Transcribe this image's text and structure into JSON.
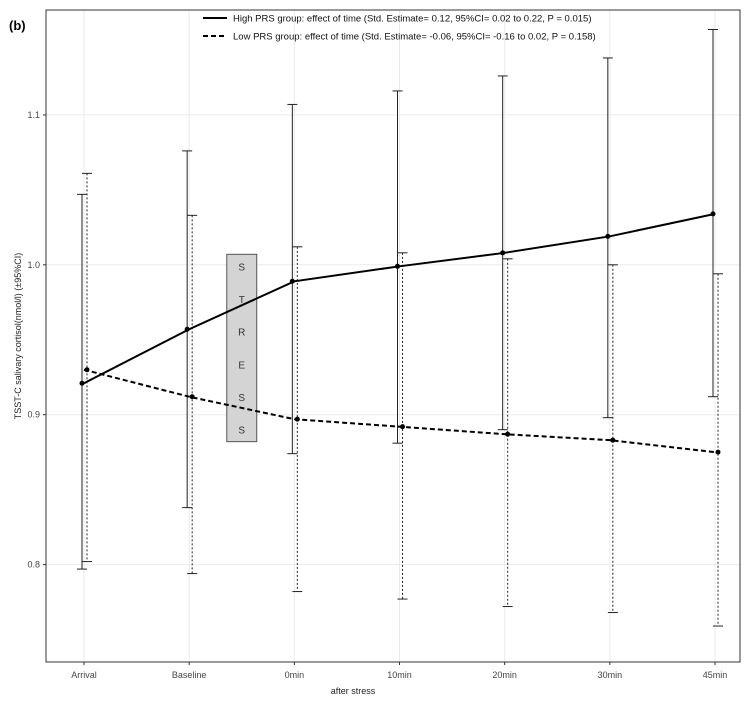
{
  "chart_data": {
    "type": "line",
    "panel_label": "(b)",
    "xlabel": "after stress",
    "ylabel": "TSST-C salivary cortisol(nmol/l) (±95%CI)",
    "categories": [
      "Arrival",
      "Baseline",
      "0min",
      "10min",
      "20min",
      "30min",
      "45min"
    ],
    "yticks": [
      0.8,
      0.9,
      1.0,
      1.1
    ],
    "ytick_labels": [
      "0.8",
      "0.9",
      "1.0",
      "1.1"
    ],
    "ylim": [
      0.735,
      1.17
    ],
    "grid": true,
    "legend_position": "top-right",
    "series": [
      {
        "name": "High PRS group: effect of time  (Std. Estimate= 0.12, 95%CI= 0.02 to 0.22, P = 0.015)",
        "style": "solid",
        "color": "#000000",
        "values": [
          0.921,
          0.957,
          0.989,
          0.999,
          1.008,
          1.019,
          1.034
        ],
        "ci_lower": [
          0.797,
          0.838,
          0.874,
          0.881,
          0.89,
          0.898,
          0.912
        ],
        "ci_upper": [
          1.047,
          1.076,
          1.107,
          1.116,
          1.126,
          1.138,
          1.157
        ]
      },
      {
        "name": "Low PRS group: effect of time  (Std. Estimate= -0.06, 95%CI= -0.16 to 0.02, P = 0.158)",
        "style": "dashed",
        "color": "#000000",
        "values": [
          0.93,
          0.912,
          0.897,
          0.892,
          0.887,
          0.883,
          0.875
        ],
        "ci_lower": [
          0.802,
          0.794,
          0.782,
          0.777,
          0.772,
          0.768,
          0.759
        ],
        "ci_upper": [
          1.061,
          1.033,
          1.012,
          1.008,
          1.004,
          1.0,
          0.994
        ]
      }
    ],
    "annotation": {
      "text": "STRESS",
      "letters": [
        "S",
        "T",
        "R",
        "E",
        "S",
        "S"
      ],
      "between_categories": [
        "Baseline",
        "0min"
      ],
      "fill": "#d4d4d4"
    }
  }
}
